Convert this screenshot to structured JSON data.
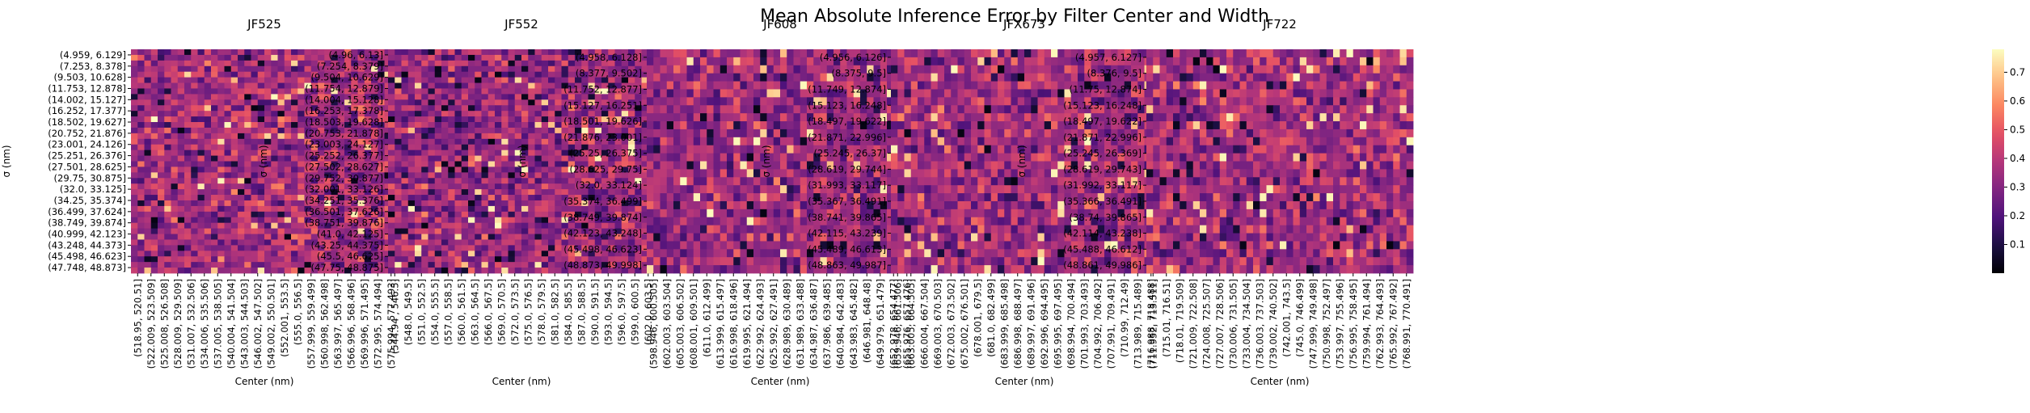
{
  "figure": {
    "title": "Mean Absolute Inference Error by Filter Center and Width"
  },
  "colorbar": {
    "colormap": "magma",
    "range": [
      0.0,
      0.78
    ],
    "ticks": [
      "0.1",
      "0.2",
      "0.3",
      "0.4",
      "0.5",
      "0.6",
      "0.7"
    ]
  },
  "chart_data": [
    {
      "type": "heatmap",
      "title": "JF525",
      "xlabel": "Center (nm)",
      "ylabel": "σ (nm)",
      "xticks": [
        "(518.95, 520.51]",
        "(522.009, 523.509]",
        "(525.008, 526.508]",
        "(528.009, 529.509]",
        "(531.007, 532.506]",
        "(534.006, 535.506]",
        "(537.005, 538.505]",
        "(540.004, 541.504]",
        "(543.003, 544.503]",
        "(546.002, 547.502]",
        "(549.002, 550.501]",
        "(552.001, 553.5]",
        "(555.0, 556.5]",
        "(557.999, 559.499]",
        "(560.998, 562.498]",
        "(563.997, 565.497]",
        "(566.996, 568.496]",
        "(569.996, 571.495]",
        "(572.995, 574.494]",
        "(575.994, 577.493]"
      ],
      "yticks": [
        "(4.959, 6.129]",
        "(7.253, 8.378]",
        "(9.503, 10.628]",
        "(11.753, 12.878]",
        "(14.002, 15.127]",
        "(16.252, 17.377]",
        "(18.502, 19.627]",
        "(20.752, 21.876]",
        "(23.001, 24.126]",
        "(25.251, 26.376]",
        "(27.501, 28.625]",
        "(29.75, 30.875]",
        "(32.0, 33.125]",
        "(34.25, 35.374]",
        "(36.499, 37.624]",
        "(38.749, 39.874]",
        "(40.999, 42.123]",
        "(43.248, 44.373]",
        "(45.498, 46.623]",
        "(47.748, 48.873]"
      ],
      "n_cols": 40,
      "n_rows": 40,
      "value_range": [
        0.02,
        0.78
      ],
      "typical_value": 0.35,
      "seed": 525
    },
    {
      "type": "heatmap",
      "title": "JF552",
      "xlabel": "Center (nm)",
      "ylabel": "σ (nm)",
      "xticks": [
        "(544.94 , 546.5]",
        "(548.0, 549.5]",
        "(551.0, 552.5]",
        "(554.0, 555.5]",
        "(557.0, 558.5]",
        "(560.0, 561.5]",
        "(563.0, 564.5]",
        "(566.0, 567.5]",
        "(569.0, 570.5]",
        "(572.0, 573.5]",
        "(575.0, 576.5]",
        "(578.0, 579.5]",
        "(581.0, 582.5]",
        "(584.0, 585.5]",
        "(587.0, 588.5]",
        "(590.0, 591.5]",
        "(593.0, 594.5]",
        "(596.0, 597.5]",
        "(599.0, 600.5]",
        "(602.0, 603.5]"
      ],
      "yticks": [
        "(4.96, 6.13]",
        "(7.254, 8.379]",
        "(9.504, 10.629]",
        "(11.754, 12.879]",
        "(14.004, 15.128]",
        "(16.253, 17.378]",
        "(18.503, 19.628]",
        "(20.753, 21.878]",
        "(23.003, 24.127]",
        "(25.252, 26.377]",
        "(27.502, 28.627]",
        "(29.752, 30.877]",
        "(32.001, 33.126]",
        "(34.251, 35.376]",
        "(36.501, 37.626]",
        "(38.751, 39.876]",
        "(41.0, 42.125]",
        "(43.25, 44.375]",
        "(45.5, 46.625]",
        "(47.75, 48.875]"
      ],
      "n_cols": 40,
      "n_rows": 40,
      "value_range": [
        0.02,
        0.78
      ],
      "typical_value": 0.33,
      "seed": 552
    },
    {
      "type": "heatmap",
      "title": "JF608",
      "xlabel": "Center (nm)",
      "ylabel": "σ (nm)",
      "xticks": [
        "(598.946, 600.505]",
        "(602.003, 603.504]",
        "(605.003, 606.502]",
        "(608.001, 609.501]",
        "(611.0, 612.499]",
        "(613.999, 615.497]",
        "(616.998, 618.496]",
        "(619.995, 621.494]",
        "(622.992, 624.493]",
        "(625.992, 627.491]",
        "(628.989, 630.489]",
        "(631.989, 633.488]",
        "(634.987, 636.487]",
        "(637.986, 639.485]",
        "(640.984, 642.483]",
        "(643.983, 645.482]",
        "(646.981, 648.48]",
        "(649.979, 651.479]",
        "(652.978, 654.477]",
        "(655.976, 657.476]"
      ],
      "yticks": [
        "(4.958, 6.128]",
        "(8.377, 9.502]",
        "(11.752, 12.877]",
        "(15.127, 16.251]",
        "(18.501, 19.626]",
        "(21.876, 23.001]",
        "(25.25, 26.375]",
        "(28.625, 29.75]",
        "(32.0, 33.124]",
        "(35.374, 36.499]",
        "(38.749, 39.874]",
        "(42.123, 43.248]",
        "(45.498, 46.623]",
        "(48.873, 49.998]"
      ],
      "n_cols": 40,
      "n_rows": 28,
      "value_range": [
        0.02,
        0.78
      ],
      "typical_value": 0.33,
      "seed": 608
    },
    {
      "type": "heatmap",
      "title": "JFX673",
      "xlabel": "Center (nm)",
      "ylabel": "σ (nm)",
      "xticks": [
        "(659.946, 661.506]",
        "(663.005, 664.505]",
        "(666.004, 667.504]",
        "(669.003, 670.503]",
        "(672.003, 673.502]",
        "(675.002, 676.501]",
        "(678.001, 679.5]",
        "(681.0, 682.499]",
        "(683.999, 685.498]",
        "(686.998, 688.497]",
        "(689.997, 691.496]",
        "(692.996, 694.495]",
        "(695.995, 697.495]",
        "(698.994, 700.494]",
        "(701.993, 703.493]",
        "(704.992, 706.492]",
        "(707.991, 709.491]",
        "(710.99, 712.49]",
        "(713.989, 715.489]",
        "(716.988, 718.488]"
      ],
      "yticks": [
        "(4.956, 6.126]",
        "(8.375, 9.5]",
        "(11.749, 12.874]",
        "(15.123, 16.248]",
        "(18.497, 19.622]",
        "(21.871, 22.996]",
        "(25.245, 26.37]",
        "(28.619, 29.744]",
        "(31.993, 33.117]",
        "(35.367, 36.491]",
        "(38.741, 39.865]",
        "(42.115, 43.239]",
        "(45.489, 46.613]",
        "(48.863, 49.987]"
      ],
      "n_cols": 40,
      "n_rows": 28,
      "value_range": [
        0.02,
        0.78
      ],
      "typical_value": 0.35,
      "seed": 673
    },
    {
      "type": "heatmap",
      "title": "JF722",
      "xlabel": "Center (nm)",
      "ylabel": "σ (nm)",
      "xticks": [
        "(711.952, 713.511]",
        "(715.01, 716.51]",
        "(718.01, 719.509]",
        "(721.009, 722.508]",
        "(724.008, 725.507]",
        "(727.007, 728.506]",
        "(730.006, 731.505]",
        "(733.004, 734.504]",
        "(736.003, 737.503]",
        "(739.002, 740.502]",
        "(742.001, 743.5]",
        "(745.0, 746.499]",
        "(747.999, 749.498]",
        "(750.998, 752.497]",
        "(753.997, 755.496]",
        "(756.995, 758.495]",
        "(759.994, 761.494]",
        "(762.993, 764.493]",
        "(765.992, 767.492]",
        "(768.991, 770.491]"
      ],
      "yticks": [
        "(4.957, 6.127]",
        "(8.376, 9.5]",
        "(11.75, 12.874]",
        "(15.123, 16.248]",
        "(18.497, 19.622]",
        "(21.871, 22.996]",
        "(25.245, 26.369]",
        "(28.619, 29.743]",
        "(31.992, 33.117]",
        "(35.366, 36.491]",
        "(38.74, 39.865]",
        "(42.114, 43.238]",
        "(45.488, 46.612]",
        "(48.861, 49.986]"
      ],
      "n_cols": 40,
      "n_rows": 28,
      "value_range": [
        0.02,
        0.78
      ],
      "typical_value": 0.35,
      "seed": 722
    }
  ]
}
